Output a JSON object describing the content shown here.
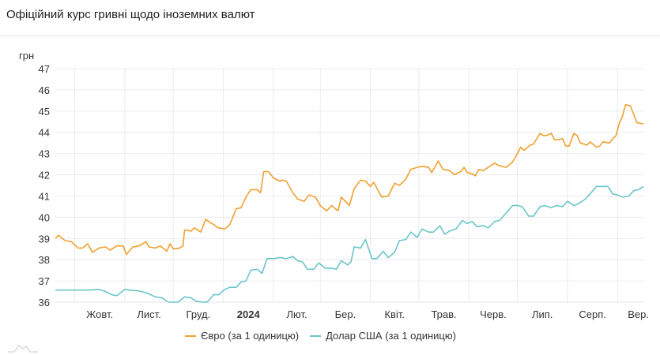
{
  "title": "Офіційний курс гривні щодо іноземних валют",
  "colors": {
    "eur": "#f0a030",
    "usd": "#6cc5c8",
    "grid": "#ebebeb"
  },
  "chart_data": {
    "type": "line",
    "title": "Офіційний курс гривні щодо іноземних валют",
    "ylabel": "грн",
    "xlabel": "",
    "ylim": [
      36,
      47
    ],
    "yticks": [
      36,
      37,
      38,
      39,
      40,
      41,
      42,
      43,
      44,
      45,
      46,
      47
    ],
    "xticks": [
      "Жовт.",
      "Лист.",
      "Груд.",
      "2024",
      "Лют.",
      "Бер.",
      "Квіт.",
      "Трав.",
      "Черв.",
      "Лип.",
      "Серп.",
      "Вер."
    ],
    "grid": true,
    "legend_position": "bottom",
    "x_range": [
      "2023-09-19",
      "2024-09-17"
    ],
    "series": [
      {
        "name": "Євро (за 1 одиницю)",
        "color": "#f0a030",
        "points": [
          [
            "2023-09-19",
            39.0
          ],
          [
            "2023-09-21",
            39.15
          ],
          [
            "2023-09-25",
            38.9
          ],
          [
            "2023-09-29",
            38.85
          ],
          [
            "2023-10-03",
            38.55
          ],
          [
            "2023-10-06",
            38.55
          ],
          [
            "2023-10-09",
            38.75
          ],
          [
            "2023-10-12",
            38.35
          ],
          [
            "2023-10-16",
            38.55
          ],
          [
            "2023-10-20",
            38.6
          ],
          [
            "2023-10-23",
            38.45
          ],
          [
            "2023-10-27",
            38.65
          ],
          [
            "2023-10-31",
            38.65
          ],
          [
            "2023-11-02",
            38.25
          ],
          [
            "2023-11-06",
            38.6
          ],
          [
            "2023-11-10",
            38.65
          ],
          [
            "2023-11-14",
            38.85
          ],
          [
            "2023-11-16",
            38.6
          ],
          [
            "2023-11-20",
            38.55
          ],
          [
            "2023-11-23",
            38.65
          ],
          [
            "2023-11-27",
            38.4
          ],
          [
            "2023-11-29",
            38.75
          ],
          [
            "2023-12-01",
            38.5
          ],
          [
            "2023-12-05",
            38.55
          ],
          [
            "2023-12-07",
            38.65
          ],
          [
            "2023-12-08",
            39.4
          ],
          [
            "2023-12-12",
            39.35
          ],
          [
            "2023-12-14",
            39.5
          ],
          [
            "2023-12-18",
            39.3
          ],
          [
            "2023-12-21",
            39.9
          ],
          [
            "2023-12-25",
            39.7
          ],
          [
            "2023-12-29",
            39.5
          ],
          [
            "2024-01-02",
            39.45
          ],
          [
            "2024-01-05",
            39.65
          ],
          [
            "2024-01-09",
            40.4
          ],
          [
            "2024-01-12",
            40.45
          ],
          [
            "2024-01-15",
            40.95
          ],
          [
            "2024-01-18",
            41.3
          ],
          [
            "2024-01-22",
            41.3
          ],
          [
            "2024-01-24",
            41.15
          ],
          [
            "2024-01-26",
            42.15
          ],
          [
            "2024-01-29",
            42.15
          ],
          [
            "2024-02-01",
            41.85
          ],
          [
            "2024-02-05",
            41.7
          ],
          [
            "2024-02-07",
            41.75
          ],
          [
            "2024-02-09",
            41.7
          ],
          [
            "2024-02-13",
            41.15
          ],
          [
            "2024-02-16",
            40.85
          ],
          [
            "2024-02-20",
            40.75
          ],
          [
            "2024-02-23",
            41.05
          ],
          [
            "2024-02-27",
            40.95
          ],
          [
            "2024-03-01",
            40.55
          ],
          [
            "2024-03-05",
            40.3
          ],
          [
            "2024-03-08",
            40.55
          ],
          [
            "2024-03-12",
            40.3
          ],
          [
            "2024-03-14",
            40.95
          ],
          [
            "2024-03-19",
            40.55
          ],
          [
            "2024-03-22",
            41.35
          ],
          [
            "2024-03-26",
            41.75
          ],
          [
            "2024-03-29",
            41.7
          ],
          [
            "2024-04-01",
            41.45
          ],
          [
            "2024-04-03",
            41.65
          ],
          [
            "2024-04-08",
            40.95
          ],
          [
            "2024-04-12",
            41.0
          ],
          [
            "2024-04-16",
            41.6
          ],
          [
            "2024-04-19",
            41.5
          ],
          [
            "2024-04-23",
            41.8
          ],
          [
            "2024-04-26",
            42.25
          ],
          [
            "2024-04-30",
            42.35
          ],
          [
            "2024-05-03",
            42.4
          ],
          [
            "2024-05-07",
            42.35
          ],
          [
            "2024-05-09",
            42.1
          ],
          [
            "2024-05-13",
            42.65
          ],
          [
            "2024-05-16",
            42.25
          ],
          [
            "2024-05-20",
            42.2
          ],
          [
            "2024-05-23",
            42.0
          ],
          [
            "2024-05-27",
            42.15
          ],
          [
            "2024-05-29",
            42.35
          ],
          [
            "2024-05-31",
            42.1
          ],
          [
            "2024-06-03",
            42.05
          ],
          [
            "2024-06-05",
            41.95
          ],
          [
            "2024-06-07",
            42.25
          ],
          [
            "2024-06-10",
            42.2
          ],
          [
            "2024-06-13",
            42.35
          ],
          [
            "2024-06-17",
            42.55
          ],
          [
            "2024-06-19",
            42.45
          ],
          [
            "2024-06-21",
            42.4
          ],
          [
            "2024-06-24",
            42.35
          ],
          [
            "2024-06-28",
            42.6
          ],
          [
            "2024-07-01",
            43.0
          ],
          [
            "2024-07-03",
            43.3
          ],
          [
            "2024-07-05",
            43.15
          ],
          [
            "2024-07-09",
            43.4
          ],
          [
            "2024-07-11",
            43.45
          ],
          [
            "2024-07-15",
            43.95
          ],
          [
            "2024-07-17",
            43.85
          ],
          [
            "2024-07-19",
            43.85
          ],
          [
            "2024-07-22",
            43.95
          ],
          [
            "2024-07-24",
            43.65
          ],
          [
            "2024-07-26",
            43.65
          ],
          [
            "2024-07-29",
            43.7
          ],
          [
            "2024-07-31",
            43.35
          ],
          [
            "2024-08-02",
            43.35
          ],
          [
            "2024-08-05",
            43.95
          ],
          [
            "2024-08-07",
            43.85
          ],
          [
            "2024-08-09",
            43.5
          ],
          [
            "2024-08-13",
            43.4
          ],
          [
            "2024-08-15",
            43.55
          ],
          [
            "2024-08-19",
            43.3
          ],
          [
            "2024-08-21",
            43.35
          ],
          [
            "2024-08-23",
            43.55
          ],
          [
            "2024-08-27",
            43.5
          ],
          [
            "2024-08-29",
            43.7
          ],
          [
            "2024-08-31",
            43.85
          ],
          [
            "2024-09-02",
            44.4
          ],
          [
            "2024-09-04",
            44.75
          ],
          [
            "2024-09-06",
            45.3
          ],
          [
            "2024-09-09",
            45.25
          ],
          [
            "2024-09-11",
            44.85
          ],
          [
            "2024-09-13",
            44.45
          ],
          [
            "2024-09-17",
            44.4
          ]
        ]
      },
      {
        "name": "Долар США (за 1 одиницю)",
        "color": "#6cc5c8",
        "points": [
          [
            "2023-09-19",
            36.57
          ],
          [
            "2023-10-01",
            36.57
          ],
          [
            "2023-10-10",
            36.57
          ],
          [
            "2023-10-16",
            36.6
          ],
          [
            "2023-10-20",
            36.5
          ],
          [
            "2023-10-24",
            36.35
          ],
          [
            "2023-10-27",
            36.3
          ],
          [
            "2023-11-01",
            36.6
          ],
          [
            "2023-11-05",
            36.55
          ],
          [
            "2023-11-08",
            36.55
          ],
          [
            "2023-11-14",
            36.45
          ],
          [
            "2023-11-20",
            36.25
          ],
          [
            "2023-11-24",
            36.2
          ],
          [
            "2023-11-28",
            36.0
          ],
          [
            "2023-12-04",
            36.0
          ],
          [
            "2023-12-08",
            36.25
          ],
          [
            "2023-12-12",
            36.2
          ],
          [
            "2023-12-15",
            36.05
          ],
          [
            "2023-12-19",
            36.0
          ],
          [
            "2023-12-22",
            36.0
          ],
          [
            "2023-12-26",
            36.35
          ],
          [
            "2023-12-29",
            36.35
          ],
          [
            "2024-01-02",
            36.6
          ],
          [
            "2024-01-05",
            36.7
          ],
          [
            "2024-01-09",
            36.7
          ],
          [
            "2024-01-12",
            36.95
          ],
          [
            "2024-01-15",
            37.0
          ],
          [
            "2024-01-18",
            37.5
          ],
          [
            "2024-01-22",
            37.55
          ],
          [
            "2024-01-25",
            37.35
          ],
          [
            "2024-01-28",
            38.05
          ],
          [
            "2024-02-01",
            38.05
          ],
          [
            "2024-02-05",
            38.1
          ],
          [
            "2024-02-09",
            38.05
          ],
          [
            "2024-02-13",
            38.15
          ],
          [
            "2024-02-16",
            37.95
          ],
          [
            "2024-02-19",
            37.9
          ],
          [
            "2024-02-22",
            37.55
          ],
          [
            "2024-02-26",
            37.55
          ],
          [
            "2024-02-29",
            37.85
          ],
          [
            "2024-03-04",
            37.6
          ],
          [
            "2024-03-08",
            37.6
          ],
          [
            "2024-03-11",
            37.55
          ],
          [
            "2024-03-14",
            37.95
          ],
          [
            "2024-03-18",
            37.75
          ],
          [
            "2024-03-20",
            37.9
          ],
          [
            "2024-03-22",
            38.6
          ],
          [
            "2024-03-26",
            38.55
          ],
          [
            "2024-03-29",
            38.95
          ],
          [
            "2024-04-02",
            38.05
          ],
          [
            "2024-04-05",
            38.05
          ],
          [
            "2024-04-09",
            38.4
          ],
          [
            "2024-04-12",
            38.1
          ],
          [
            "2024-04-16",
            38.35
          ],
          [
            "2024-04-19",
            38.9
          ],
          [
            "2024-04-23",
            38.95
          ],
          [
            "2024-04-26",
            39.3
          ],
          [
            "2024-04-30",
            39.05
          ],
          [
            "2024-05-03",
            39.45
          ],
          [
            "2024-05-07",
            39.3
          ],
          [
            "2024-05-10",
            39.3
          ],
          [
            "2024-05-14",
            39.6
          ],
          [
            "2024-05-17",
            39.2
          ],
          [
            "2024-05-20",
            39.35
          ],
          [
            "2024-05-24",
            39.45
          ],
          [
            "2024-05-28",
            39.85
          ],
          [
            "2024-05-31",
            39.7
          ],
          [
            "2024-06-03",
            39.8
          ],
          [
            "2024-06-06",
            39.55
          ],
          [
            "2024-06-10",
            39.6
          ],
          [
            "2024-06-13",
            39.5
          ],
          [
            "2024-06-17",
            39.8
          ],
          [
            "2024-06-20",
            39.85
          ],
          [
            "2024-06-24",
            40.2
          ],
          [
            "2024-06-28",
            40.55
          ],
          [
            "2024-07-01",
            40.55
          ],
          [
            "2024-07-04",
            40.5
          ],
          [
            "2024-07-08",
            40.05
          ],
          [
            "2024-07-11",
            40.05
          ],
          [
            "2024-07-15",
            40.5
          ],
          [
            "2024-07-18",
            40.55
          ],
          [
            "2024-07-22",
            40.45
          ],
          [
            "2024-07-25",
            40.55
          ],
          [
            "2024-07-29",
            40.5
          ],
          [
            "2024-08-01",
            40.75
          ],
          [
            "2024-08-05",
            40.55
          ],
          [
            "2024-08-08",
            40.65
          ],
          [
            "2024-08-12",
            40.85
          ],
          [
            "2024-08-15",
            41.1
          ],
          [
            "2024-08-19",
            41.45
          ],
          [
            "2024-08-22",
            41.45
          ],
          [
            "2024-08-26",
            41.45
          ],
          [
            "2024-08-29",
            41.1
          ],
          [
            "2024-09-01",
            41.05
          ],
          [
            "2024-09-04",
            40.95
          ],
          [
            "2024-09-08",
            41.0
          ],
          [
            "2024-09-11",
            41.25
          ],
          [
            "2024-09-14",
            41.3
          ],
          [
            "2024-09-17",
            41.45
          ]
        ]
      }
    ]
  },
  "legend": {
    "eur_label": "Євро (за 1 одиницю)",
    "usd_label": "Долар США (за 1 одиницю)"
  },
  "y_axis_unit": "грн"
}
